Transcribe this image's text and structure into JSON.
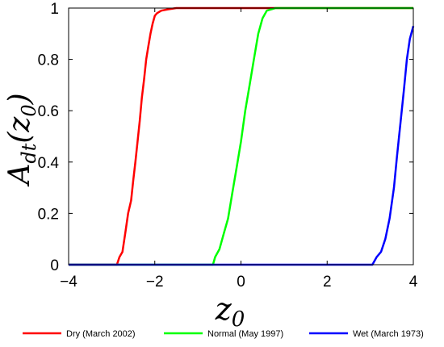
{
  "chart_data": {
    "type": "line",
    "title": "",
    "xlabel": {
      "base": "z",
      "sub": "0"
    },
    "ylabel": {
      "base": "A",
      "sub": "dt",
      "open": "(",
      "arg_base": "z",
      "arg_sub": "0",
      "close": ")"
    },
    "xlim": [
      -4,
      4
    ],
    "ylim": [
      0,
      1
    ],
    "xticks": [
      -4,
      -2,
      0,
      2,
      4
    ],
    "xtick_labels": [
      "−4",
      "−2",
      "0",
      "2",
      "4"
    ],
    "yticks": [
      0,
      0.2,
      0.4,
      0.6,
      0.8,
      1
    ],
    "ytick_labels": [
      "0",
      "0.2",
      "0.4",
      "0.6",
      "0.8",
      "1"
    ],
    "grid": false,
    "legend_position": "bottom",
    "series": [
      {
        "name": "Dry (March 2002)",
        "color": "#ff0000",
        "x": [
          -4,
          -2.88,
          -2.82,
          -2.75,
          -2.68,
          -2.62,
          -2.55,
          -2.5,
          -2.45,
          -2.4,
          -2.35,
          -2.3,
          -2.25,
          -2.2,
          -2.15,
          -2.1,
          -2.05,
          -2.0,
          -1.95,
          -1.85,
          -1.7,
          -1.5,
          4
        ],
        "y": [
          0,
          0,
          0.03,
          0.05,
          0.13,
          0.2,
          0.25,
          0.33,
          0.4,
          0.48,
          0.56,
          0.65,
          0.72,
          0.8,
          0.85,
          0.9,
          0.94,
          0.97,
          0.98,
          0.99,
          0.995,
          1,
          1
        ]
      },
      {
        "name": "Normal (May 1997)",
        "color": "#00ff00",
        "x": [
          -4,
          -0.65,
          -0.6,
          -0.5,
          -0.4,
          -0.3,
          -0.2,
          -0.1,
          0.0,
          0.1,
          0.2,
          0.3,
          0.4,
          0.5,
          0.6,
          0.8,
          4
        ],
        "y": [
          0,
          0,
          0.03,
          0.06,
          0.12,
          0.18,
          0.28,
          0.38,
          0.48,
          0.6,
          0.7,
          0.8,
          0.9,
          0.96,
          0.99,
          1,
          1
        ]
      },
      {
        "name": "Wet (March 1973)",
        "color": "#0000ff",
        "x": [
          -4,
          3.05,
          3.15,
          3.25,
          3.35,
          3.45,
          3.55,
          3.62,
          3.7,
          3.78,
          3.85,
          3.92,
          4.0
        ],
        "y": [
          0,
          0,
          0.03,
          0.05,
          0.1,
          0.18,
          0.3,
          0.42,
          0.55,
          0.68,
          0.8,
          0.88,
          0.93
        ]
      }
    ]
  }
}
